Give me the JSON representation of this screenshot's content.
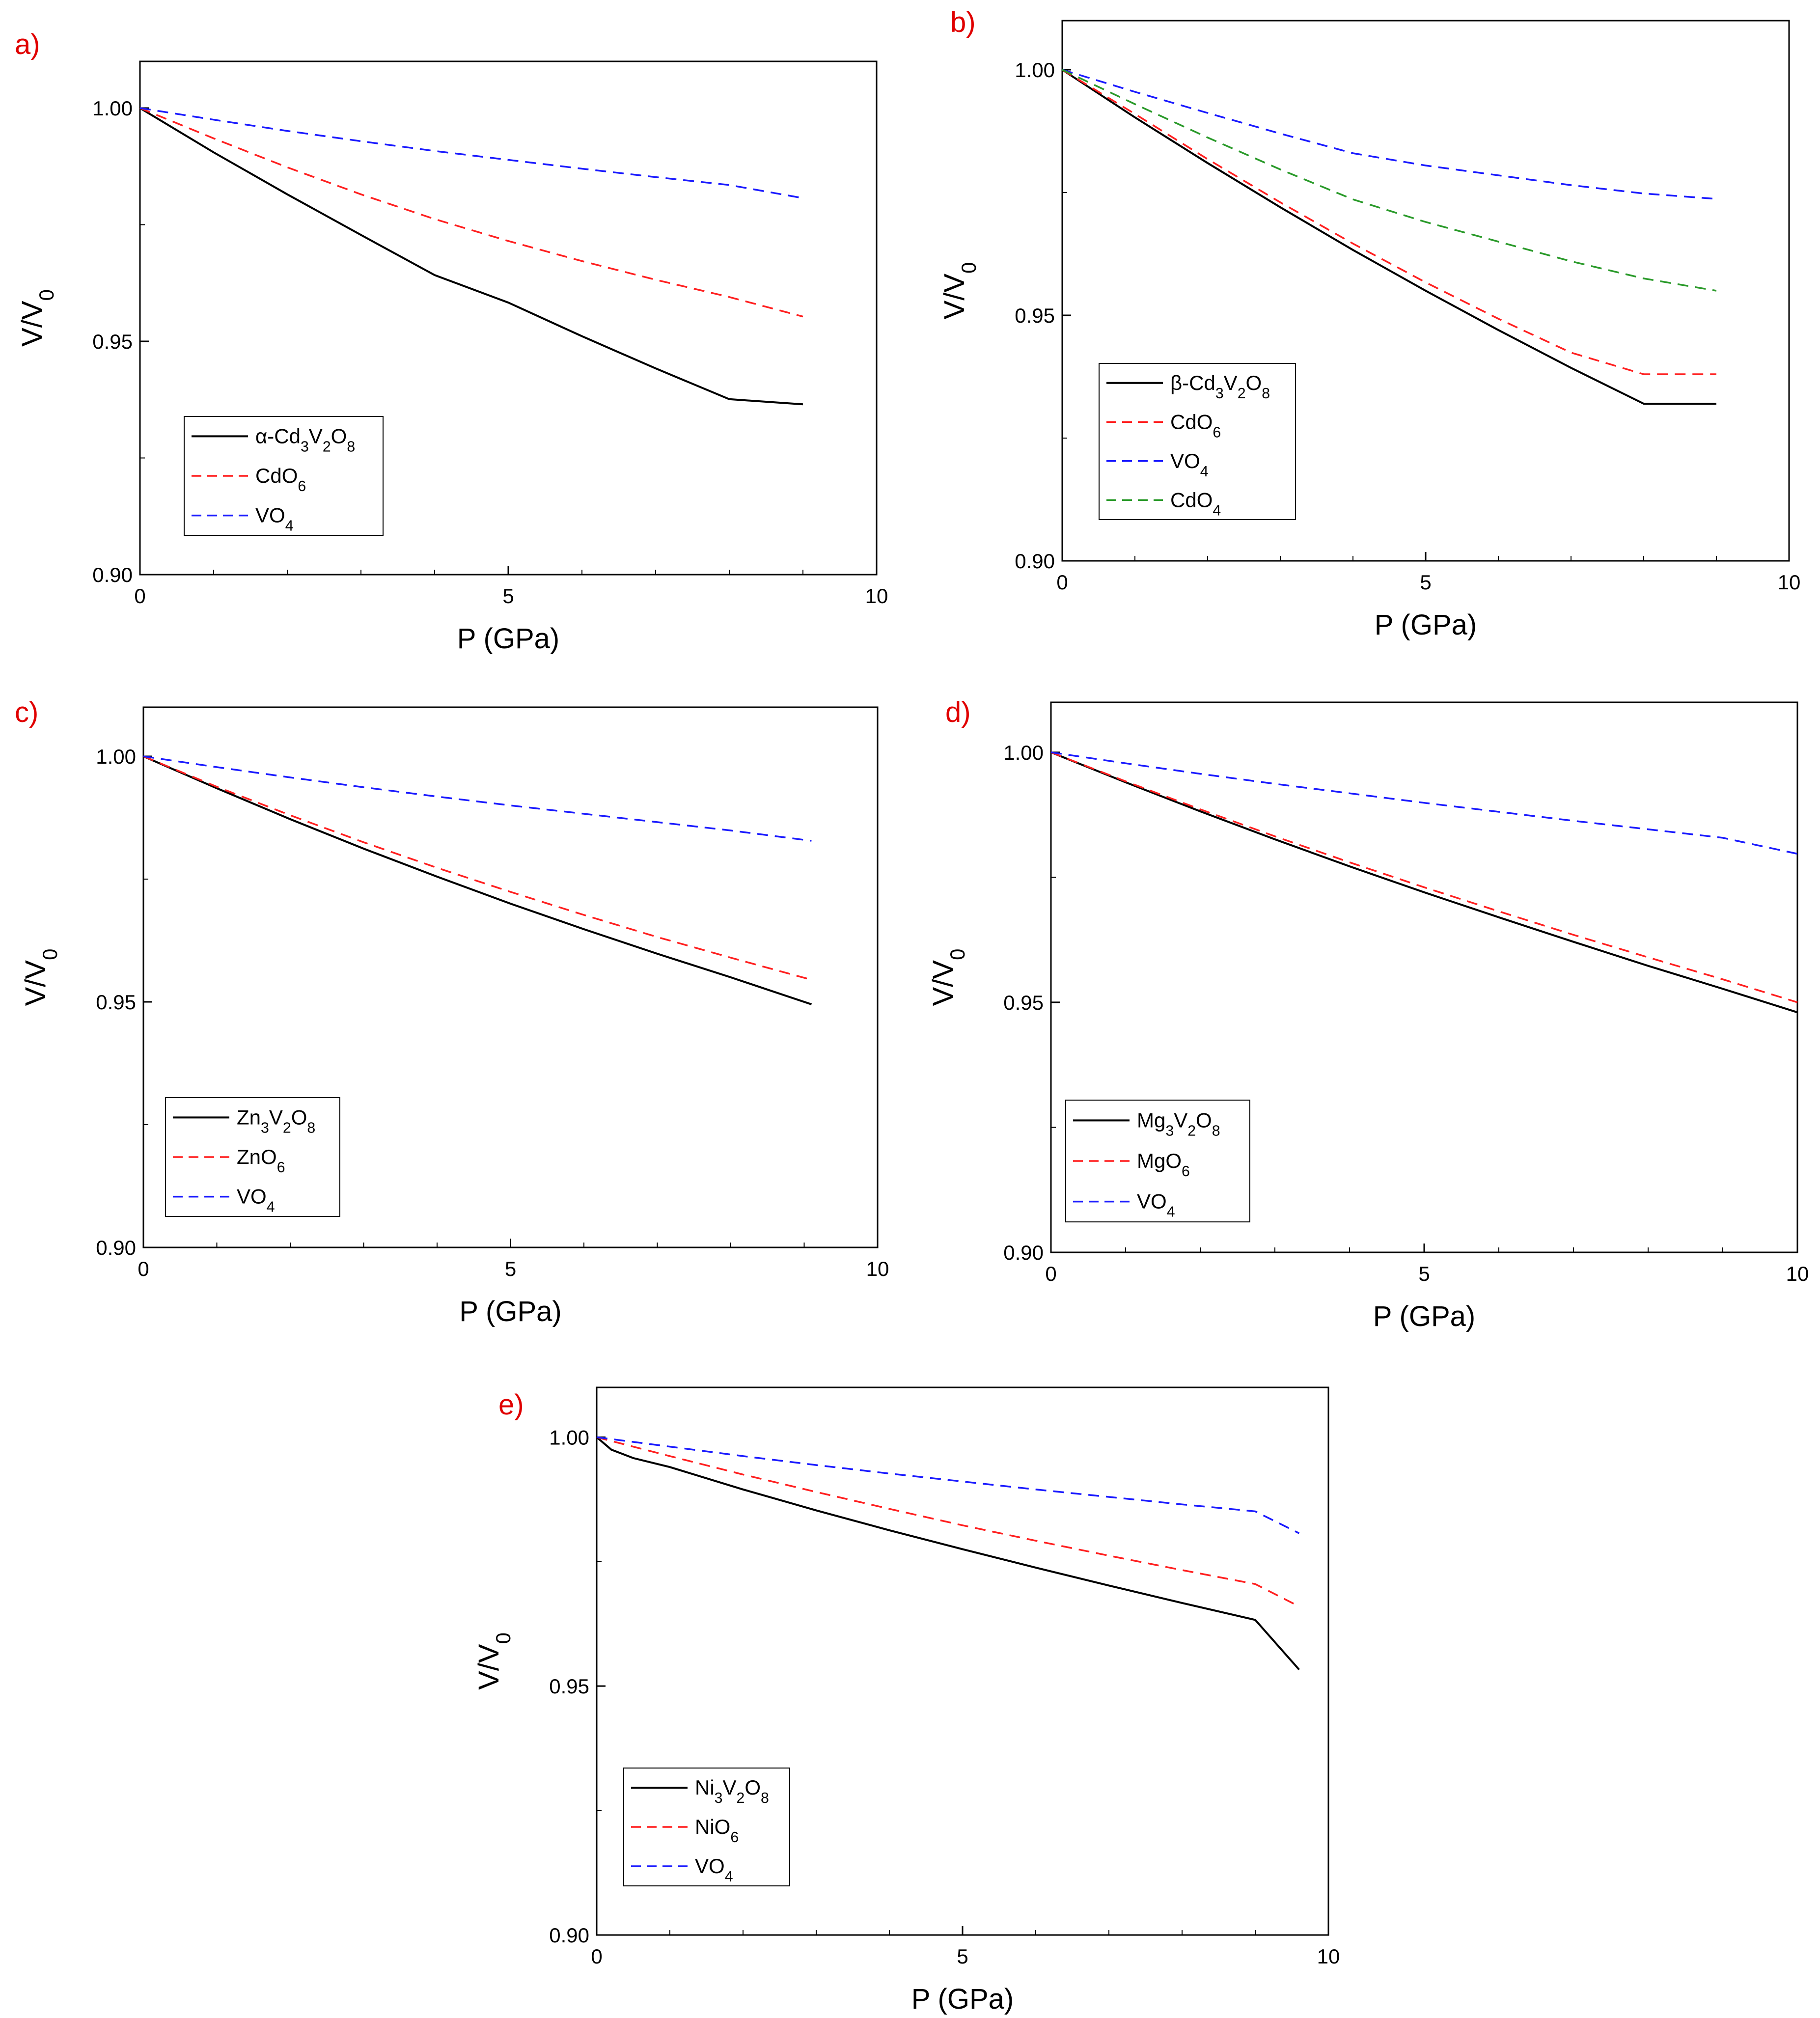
{
  "colors": {
    "panel_label": "#e00000",
    "black": "#000000",
    "red": "#ff2020",
    "blue": "#1a1aff",
    "green": "#2a9a2a"
  },
  "chart_data": [
    {
      "panel": "a)",
      "type": "line",
      "xlabel": "P (GPa)",
      "ylabel": "V/V0",
      "xlim": [
        0,
        10
      ],
      "ylim": [
        0.9,
        1.01
      ],
      "xticks": [
        "0",
        "5",
        "10"
      ],
      "yticks": [
        "0.90",
        "0.95",
        "1.00"
      ],
      "legend_placement": "bottom-left",
      "series": [
        {
          "name": "α-Cd3V2O8",
          "color": "#000000",
          "dash": "solid",
          "x": [
            0,
            1,
            2,
            3,
            4,
            5,
            6,
            7,
            8,
            9
          ],
          "y": [
            1.0,
            0.9905,
            0.9815,
            0.9728,
            0.9642,
            0.9583,
            0.9511,
            0.9442,
            0.9376,
            0.9365
          ]
        },
        {
          "name": "CdO6",
          "color": "#ff2020",
          "dash": "dashed",
          "x": [
            0,
            1,
            2,
            3,
            4,
            5,
            6,
            7,
            8,
            9
          ],
          "y": [
            1.0,
            0.9935,
            0.9873,
            0.9815,
            0.9762,
            0.9715,
            0.9672,
            0.9632,
            0.9595,
            0.9553
          ]
        },
        {
          "name": "VO4",
          "color": "#1a1aff",
          "dash": "dashed",
          "x": [
            0,
            1,
            2,
            3,
            4,
            5,
            6,
            7,
            8,
            9
          ],
          "y": [
            1.0,
            0.9975,
            0.9951,
            0.9929,
            0.9908,
            0.9889,
            0.987,
            0.9852,
            0.9835,
            0.9807
          ]
        }
      ]
    },
    {
      "panel": "b)",
      "type": "line",
      "xlabel": "P (GPa)",
      "ylabel": "V/V0",
      "xlim": [
        0,
        10
      ],
      "ylim": [
        0.9,
        1.01
      ],
      "xticks": [
        "0",
        "5",
        "10"
      ],
      "yticks": [
        "0.90",
        "0.95",
        "1.00"
      ],
      "legend_placement": "bottom-left",
      "series": [
        {
          "name": "β-Cd3V2O8",
          "color": "#000000",
          "dash": "solid",
          "x": [
            0,
            1,
            2,
            3,
            4,
            5,
            6,
            7,
            8,
            9
          ],
          "y": [
            1.0,
            0.9903,
            0.981,
            0.972,
            0.9633,
            0.955,
            0.947,
            0.9393,
            0.932,
            0.932
          ]
        },
        {
          "name": "CdO6",
          "color": "#ff2020",
          "dash": "dashed",
          "x": [
            0,
            1,
            2,
            3,
            4,
            5,
            6,
            7,
            8,
            9
          ],
          "y": [
            1.0,
            0.991,
            0.9818,
            0.973,
            0.9646,
            0.9567,
            0.9493,
            0.9424,
            0.938,
            0.938
          ]
        },
        {
          "name": "VO4",
          "color": "#1a1aff",
          "dash": "dashed",
          "x": [
            0,
            1,
            2,
            3,
            4,
            5,
            6,
            7,
            8,
            9
          ],
          "y": [
            1.0,
            0.9955,
            0.9912,
            0.987,
            0.983,
            0.9805,
            0.9785,
            0.9765,
            0.9748,
            0.9737
          ]
        },
        {
          "name": "CdO4",
          "color": "#2a9a2a",
          "dash": "dashed",
          "x": [
            0,
            1,
            2,
            3,
            4,
            5,
            6,
            7,
            8,
            9
          ],
          "y": [
            1.0,
            0.993,
            0.9862,
            0.9797,
            0.9736,
            0.969,
            0.965,
            0.961,
            0.9575,
            0.955
          ]
        }
      ]
    },
    {
      "panel": "c)",
      "type": "line",
      "xlabel": "P (GPa)",
      "ylabel": "V/V0",
      "xlim": [
        0,
        10
      ],
      "ylim": [
        0.9,
        1.01
      ],
      "xticks": [
        "0",
        "5",
        "10"
      ],
      "yticks": [
        "0.90",
        "0.95",
        "1.00"
      ],
      "legend_placement": "bottom-left",
      "series": [
        {
          "name": "Zn3V2O8",
          "color": "#000000",
          "dash": "solid",
          "x": [
            0,
            1,
            2,
            3,
            4,
            5,
            6,
            7,
            8,
            9.1
          ],
          "y": [
            1.0,
            0.9935,
            0.9872,
            0.9812,
            0.9755,
            0.97,
            0.9648,
            0.9598,
            0.955,
            0.9495
          ]
        },
        {
          "name": "ZnO6",
          "color": "#ff2020",
          "dash": "dashed",
          "x": [
            0,
            1,
            2,
            3,
            4,
            5,
            6,
            7,
            8,
            9.1
          ],
          "y": [
            1.0,
            0.9938,
            0.988,
            0.9825,
            0.9773,
            0.9724,
            0.9677,
            0.9632,
            0.959,
            0.9545
          ]
        },
        {
          "name": "VO4",
          "color": "#1a1aff",
          "dash": "dashed",
          "x": [
            0,
            1,
            2,
            3,
            4,
            5,
            6,
            7,
            8,
            9.1
          ],
          "y": [
            1.0,
            0.9978,
            0.9957,
            0.9937,
            0.9918,
            0.99,
            0.9883,
            0.9866,
            0.9849,
            0.9828
          ]
        }
      ]
    },
    {
      "panel": "d)",
      "type": "line",
      "xlabel": "P (GPa)",
      "ylabel": "V/V0",
      "xlim": [
        0,
        10
      ],
      "ylim": [
        0.9,
        1.01
      ],
      "xticks": [
        "0",
        "5",
        "10"
      ],
      "yticks": [
        "0.90",
        "0.95",
        "1.00"
      ],
      "legend_placement": "bottom-left",
      "series": [
        {
          "name": "Mg3V2O8",
          "color": "#000000",
          "dash": "solid",
          "x": [
            0,
            1,
            2,
            3,
            4,
            5,
            6,
            7,
            8,
            9,
            10
          ],
          "y": [
            1.0,
            0.994,
            0.9882,
            0.9826,
            0.9772,
            0.972,
            0.967,
            0.9621,
            0.9573,
            0.9527,
            0.948
          ]
        },
        {
          "name": "MgO6",
          "color": "#ff2020",
          "dash": "dashed",
          "x": [
            0,
            1,
            2,
            3,
            4,
            5,
            6,
            7,
            8,
            9,
            10
          ],
          "y": [
            1.0,
            0.9942,
            0.9886,
            0.9832,
            0.978,
            0.973,
            0.9682,
            0.9635,
            0.959,
            0.9546,
            0.95
          ]
        },
        {
          "name": "VO4",
          "color": "#1a1aff",
          "dash": "dashed",
          "x": [
            0,
            1,
            2,
            3,
            4,
            5,
            6,
            7,
            8,
            9,
            10
          ],
          "y": [
            1.0,
            0.9978,
            0.9957,
            0.9937,
            0.9918,
            0.9899,
            0.9881,
            0.9863,
            0.9846,
            0.9829,
            0.9797
          ]
        }
      ]
    },
    {
      "panel": "e)",
      "type": "line",
      "xlabel": "P (GPa)",
      "ylabel": "V/V0",
      "xlim": [
        0,
        10
      ],
      "ylim": [
        0.9,
        1.01
      ],
      "xticks": [
        "0",
        "5",
        "10"
      ],
      "yticks": [
        "0.90",
        "0.95",
        "1.00"
      ],
      "legend_placement": "bottom-left",
      "series": [
        {
          "name": "Ni3V2O8",
          "color": "#000000",
          "dash": "solid",
          "x": [
            0,
            0.2,
            0.5,
            1,
            2,
            3,
            4,
            5,
            6,
            7,
            8,
            9,
            9.6
          ],
          "y": [
            1.0,
            0.9975,
            0.9958,
            0.994,
            0.9895,
            0.9853,
            0.9813,
            0.9775,
            0.9738,
            0.9702,
            0.9667,
            0.9633,
            0.9533
          ]
        },
        {
          "name": "NiO6",
          "color": "#ff2020",
          "dash": "dashed",
          "x": [
            0,
            1,
            2,
            3,
            4,
            5,
            6,
            7,
            8,
            9,
            9.6
          ],
          "y": [
            1.0,
            0.9962,
            0.9925,
            0.989,
            0.9856,
            0.9823,
            0.9792,
            0.9762,
            0.9733,
            0.9705,
            0.966
          ]
        },
        {
          "name": "VO4",
          "color": "#1a1aff",
          "dash": "dashed",
          "x": [
            0,
            1,
            2,
            3,
            4,
            5,
            6,
            7,
            8,
            9,
            9.6
          ],
          "y": [
            1.0,
            0.9981,
            0.9962,
            0.9944,
            0.9927,
            0.9911,
            0.9895,
            0.988,
            0.9865,
            0.9851,
            0.9807
          ]
        }
      ]
    }
  ]
}
